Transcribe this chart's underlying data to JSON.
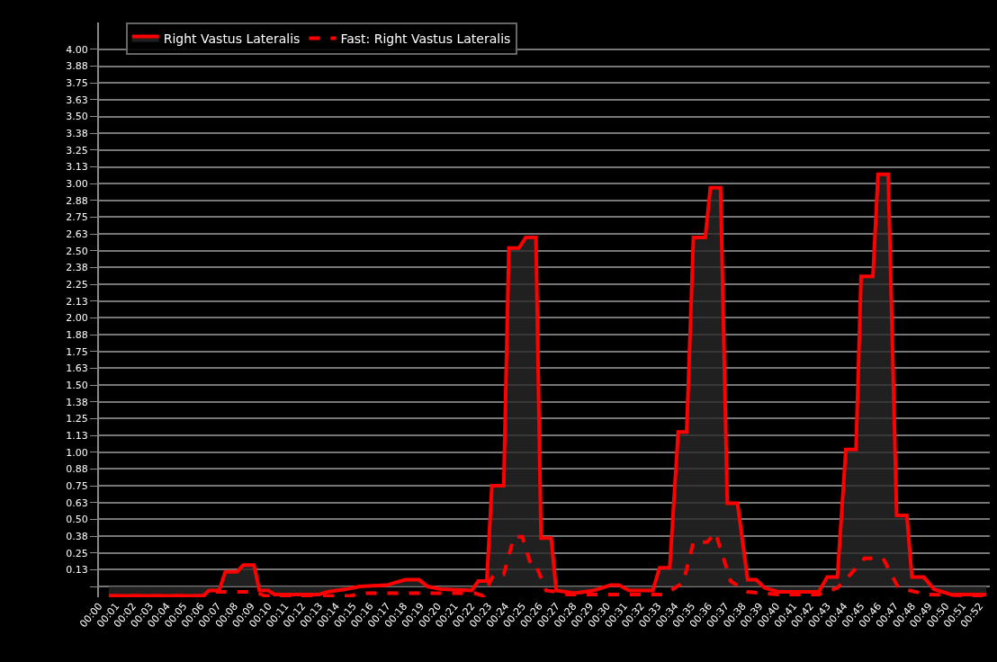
{
  "chart_data": {
    "type": "line",
    "series": [
      {
        "name": "Right Vastus Lateralis",
        "type": "area",
        "color": "#ff0000",
        "line_style": "solid",
        "x": [
          0.58,
          6.14,
          6.5,
          7.09,
          7.46,
          8.15,
          8.52,
          9.15,
          9.47,
          10.0,
          10.37,
          13.0,
          13.5,
          14.6,
          15.4,
          17.0,
          17.5,
          18.1,
          18.9,
          19.4,
          20.2,
          22.0,
          22.4,
          22.9,
          23.2,
          23.9,
          24.2,
          24.8,
          25.2,
          25.8,
          26.1,
          26.7,
          27.0,
          28.1,
          29.2,
          30.2,
          30.7,
          31.3,
          32.7,
          33.1,
          33.7,
          34.2,
          34.7,
          35.1,
          35.8,
          36.1,
          36.7,
          37.1,
          37.7,
          38.3,
          38.8,
          39.3,
          40.1,
          42.5,
          43.0,
          43.6,
          44.1,
          44.7,
          45.0,
          45.7,
          46.0,
          46.6,
          47.1,
          47.7,
          48.0,
          48.7,
          49.3,
          49.8,
          50.3,
          52.4
        ],
        "values": [
          -0.07,
          -0.07,
          -0.03,
          -0.03,
          0.11,
          0.11,
          0.16,
          0.16,
          -0.03,
          -0.03,
          -0.06,
          -0.06,
          -0.04,
          -0.02,
          0.0,
          0.01,
          0.03,
          0.05,
          0.05,
          0.0,
          -0.02,
          -0.03,
          0.04,
          0.04,
          0.75,
          0.75,
          2.52,
          2.52,
          2.6,
          2.6,
          0.36,
          0.36,
          -0.03,
          -0.05,
          -0.03,
          0.01,
          0.01,
          -0.03,
          -0.03,
          0.14,
          0.14,
          1.15,
          1.15,
          2.6,
          2.6,
          2.97,
          2.97,
          0.62,
          0.62,
          0.05,
          0.05,
          -0.01,
          -0.04,
          -0.04,
          0.07,
          0.07,
          1.02,
          1.02,
          2.31,
          2.31,
          3.07,
          3.07,
          0.53,
          0.53,
          0.07,
          0.07,
          -0.02,
          -0.04,
          -0.06,
          -0.06
        ]
      },
      {
        "name": "Fast: Right Vastus Lateralis",
        "color": "#ff0000",
        "line_style": "dashed",
        "x": [
          0.58,
          6.14,
          6.6,
          9.2,
          9.8,
          14.9,
          15.4,
          22.2,
          22.7,
          23.3,
          23.9,
          24.5,
          25.0,
          25.5,
          25.8,
          26.4,
          27.0,
          27.7,
          33.4,
          34.5,
          35.1,
          35.9,
          36.4,
          37.3,
          38.3,
          40.1,
          42.5,
          43.6,
          44.3,
          45.2,
          46.3,
          47.2,
          48.9,
          52.4
        ],
        "values": [
          -0.07,
          -0.07,
          -0.04,
          -0.04,
          -0.07,
          -0.07,
          -0.05,
          -0.05,
          -0.07,
          0.09,
          0.09,
          0.37,
          0.37,
          0.16,
          0.16,
          -0.03,
          -0.04,
          -0.06,
          -0.06,
          0.03,
          0.33,
          0.33,
          0.4,
          0.04,
          -0.04,
          -0.06,
          -0.06,
          -0.01,
          0.08,
          0.21,
          0.21,
          -0.01,
          -0.06,
          -0.07
        ]
      }
    ],
    "xlim": [
      0,
      52.6
    ],
    "xticks": [
      {
        "value": 0,
        "label": "00:00"
      },
      {
        "value": 1,
        "label": "00:01"
      },
      {
        "value": 2,
        "label": "00:02"
      },
      {
        "value": 3,
        "label": "00:03"
      },
      {
        "value": 4,
        "label": "00:04"
      },
      {
        "value": 5,
        "label": "00:05"
      },
      {
        "value": 6,
        "label": "00:06"
      },
      {
        "value": 7,
        "label": "00:07"
      },
      {
        "value": 8,
        "label": "00:08"
      },
      {
        "value": 9,
        "label": "00:09"
      },
      {
        "value": 10,
        "label": "00:10"
      },
      {
        "value": 11,
        "label": "00:11"
      },
      {
        "value": 12,
        "label": "00:12"
      },
      {
        "value": 13,
        "label": "00:13"
      },
      {
        "value": 14,
        "label": "00:14"
      },
      {
        "value": 15,
        "label": "00:15"
      },
      {
        "value": 16,
        "label": "00:16"
      },
      {
        "value": 17,
        "label": "00:17"
      },
      {
        "value": 18,
        "label": "00:18"
      },
      {
        "value": 19,
        "label": "00:19"
      },
      {
        "value": 20,
        "label": "00:20"
      },
      {
        "value": 21,
        "label": "00:21"
      },
      {
        "value": 22,
        "label": "00:22"
      },
      {
        "value": 23,
        "label": "00:23"
      },
      {
        "value": 24,
        "label": "00:24"
      },
      {
        "value": 25,
        "label": "00:25"
      },
      {
        "value": 26,
        "label": "00:26"
      },
      {
        "value": 27,
        "label": "00:27"
      },
      {
        "value": 28,
        "label": "00:28"
      },
      {
        "value": 29,
        "label": "00:29"
      },
      {
        "value": 30,
        "label": "00:30"
      },
      {
        "value": 31,
        "label": "00:31"
      },
      {
        "value": 32,
        "label": "00:32"
      },
      {
        "value": 33,
        "label": "00:33"
      },
      {
        "value": 34,
        "label": "00:34"
      },
      {
        "value": 35,
        "label": "00:35"
      },
      {
        "value": 36,
        "label": "00:36"
      },
      {
        "value": 37,
        "label": "00:37"
      },
      {
        "value": 38,
        "label": "00:38"
      },
      {
        "value": 39,
        "label": "00:39"
      },
      {
        "value": 40,
        "label": "00:40"
      },
      {
        "value": 41,
        "label": "00:41"
      },
      {
        "value": 42,
        "label": "00:42"
      },
      {
        "value": 43,
        "label": "00:43"
      },
      {
        "value": 44,
        "label": "00:44"
      },
      {
        "value": 45,
        "label": "00:45"
      },
      {
        "value": 46,
        "label": "00:46"
      },
      {
        "value": 47,
        "label": "00:47"
      },
      {
        "value": 48,
        "label": "00:48"
      },
      {
        "value": 49,
        "label": "00:49"
      },
      {
        "value": 50,
        "label": "00:50"
      },
      {
        "value": 51,
        "label": "00:51"
      },
      {
        "value": 52,
        "label": "00:52"
      }
    ],
    "ylim": [
      -0.08,
      4.2
    ],
    "yticks": [
      {
        "value": 0,
        "label": null
      },
      {
        "value": 0.125,
        "label": "0.13"
      },
      0.25,
      {
        "value": 0.375,
        "label": "0.38"
      },
      {
        "value": 0.5,
        "label": "0.50"
      },
      {
        "value": 0.625,
        "label": "0.63"
      },
      0.75,
      {
        "value": 0.875,
        "label": "0.88"
      },
      {
        "value": 1,
        "label": "1.00"
      },
      {
        "value": 1.125,
        "label": "1.13"
      },
      1.25,
      {
        "value": 1.375,
        "label": "1.38"
      },
      {
        "value": 1.5,
        "label": "1.50"
      },
      {
        "value": 1.625,
        "label": "1.63"
      },
      1.75,
      {
        "value": 1.875,
        "label": "1.88"
      },
      {
        "value": 2,
        "label": "2.00"
      },
      {
        "value": 2.125,
        "label": "2.13"
      },
      2.25,
      {
        "value": 2.375,
        "label": "2.38"
      },
      {
        "value": 2.5,
        "label": "2.50"
      },
      {
        "value": 2.625,
        "label": "2.63"
      },
      2.75,
      {
        "value": 2.875,
        "label": "2.88"
      },
      {
        "value": 3,
        "label": "3.00"
      },
      {
        "value": 3.125,
        "label": "3.13"
      },
      3.25,
      {
        "value": 3.375,
        "label": "3.38"
      },
      {
        "value": 3.5,
        "label": "3.50"
      },
      {
        "value": 3.625,
        "label": "3.63"
      },
      3.75,
      {
        "value": 3.875,
        "label": "3.88"
      },
      {
        "value": 4,
        "label": "4.00"
      }
    ],
    "grid": "y",
    "legend": "top left",
    "marker": "none"
  }
}
